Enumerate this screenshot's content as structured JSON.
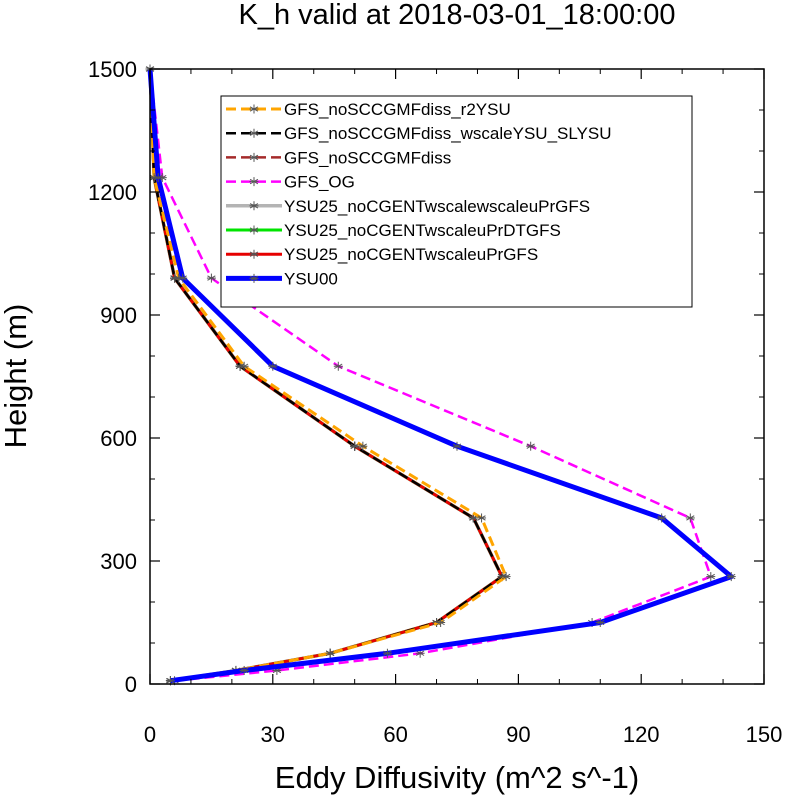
{
  "chart_data": {
    "type": "line",
    "title": "K_h valid at 2018-03-01_18:00:00",
    "xlabel": "Eddy Diffusivity (m^2 s^-1)",
    "ylabel": "Height (m)",
    "xlim": [
      0,
      150
    ],
    "ylim": [
      0,
      1500
    ],
    "xticks": [
      "0",
      "30",
      "60",
      "90",
      "120",
      "150"
    ],
    "yticks": [
      "0",
      "300",
      "600",
      "900",
      "1200",
      "1500"
    ],
    "xtick_values": [
      0,
      30,
      60,
      90,
      120,
      150
    ],
    "ytick_values": [
      0,
      300,
      600,
      900,
      1200,
      1500
    ],
    "grid": false,
    "legend_position": "top-right",
    "series": [
      {
        "name": "YSU25_noCGENTwscalewscaleuPrGFS",
        "color": "#b4b4b4",
        "dash": "solid",
        "width": 3.5,
        "x": [
          5,
          21,
          44,
          70,
          86,
          79,
          50,
          22,
          6,
          1,
          0
        ],
        "y": [
          8,
          33,
          75,
          150,
          262,
          405,
          580,
          775,
          990,
          1235,
          1500
        ]
      },
      {
        "name": "YSU25_noCGENTwscaleuPrDTGFS",
        "color": "#00e400",
        "dash": "solid",
        "width": 3,
        "x": [
          5,
          21,
          44,
          70,
          86,
          79,
          50,
          22,
          6,
          1,
          0
        ],
        "y": [
          8,
          33,
          75,
          150,
          262,
          405,
          580,
          775,
          990,
          1235,
          1500
        ]
      },
      {
        "name": "YSU25_noCGENTwscaleuPrGFS",
        "color": "#e60000",
        "dash": "solid",
        "width": 3,
        "x": [
          5,
          21,
          44,
          70,
          86,
          79,
          50,
          22,
          6,
          1,
          0
        ],
        "y": [
          8,
          33,
          75,
          150,
          262,
          405,
          580,
          775,
          990,
          1235,
          1500
        ]
      },
      {
        "name": "GFS_noSCCGMFdiss",
        "color": "#a52a2a",
        "dash": "10 5",
        "width": 2.5,
        "x": [
          5,
          21,
          44,
          70,
          86,
          79,
          50,
          22,
          6,
          1,
          0
        ],
        "y": [
          8,
          33,
          75,
          150,
          262,
          405,
          580,
          775,
          990,
          1235,
          1500
        ]
      },
      {
        "name": "GFS_noSCCGMFdiss_wscaleYSU_SLYSU",
        "color": "#000000",
        "dash": "10 5",
        "width": 2.5,
        "x": [
          5,
          21,
          44,
          70,
          86,
          79,
          50,
          22,
          6,
          1,
          0
        ],
        "y": [
          8,
          33,
          75,
          150,
          262,
          405,
          580,
          775,
          990,
          1235,
          1500
        ]
      },
      {
        "name": "GFS_noSCCGMFdiss_r2YSU",
        "color": "#ffa500",
        "dash": "10 5",
        "width": 3,
        "x": [
          5,
          21,
          44,
          71,
          87,
          81,
          52,
          23,
          7,
          1,
          0
        ],
        "y": [
          8,
          33,
          75,
          150,
          262,
          405,
          580,
          775,
          990,
          1235,
          1500
        ]
      },
      {
        "name": "GFS_OG",
        "color": "#ff00ff",
        "dash": "10 5",
        "width": 2.5,
        "x": [
          6,
          31,
          66,
          108,
          137,
          132,
          93,
          46,
          15,
          3,
          0
        ],
        "y": [
          8,
          33,
          75,
          150,
          262,
          405,
          580,
          775,
          990,
          1235,
          1500
        ]
      },
      {
        "name": "YSU00",
        "color": "#0000ff",
        "dash": "solid",
        "width": 5,
        "x": [
          5,
          23,
          58,
          110,
          142,
          125,
          75,
          30,
          8,
          2,
          0
        ],
        "y": [
          8,
          33,
          75,
          150,
          262,
          405,
          580,
          775,
          990,
          1235,
          1500
        ]
      }
    ],
    "legend_order": [
      "GFS_noSCCGMFdiss_r2YSU",
      "GFS_noSCCGMFdiss_wscaleYSU_SLYSU",
      "GFS_noSCCGMFdiss",
      "GFS_OG",
      "YSU25_noCGENTwscalewscaleuPrGFS",
      "YSU25_noCGENTwscaleuPrDTGFS",
      "YSU25_noCGENTwscaleuPrGFS",
      "YSU00"
    ]
  }
}
